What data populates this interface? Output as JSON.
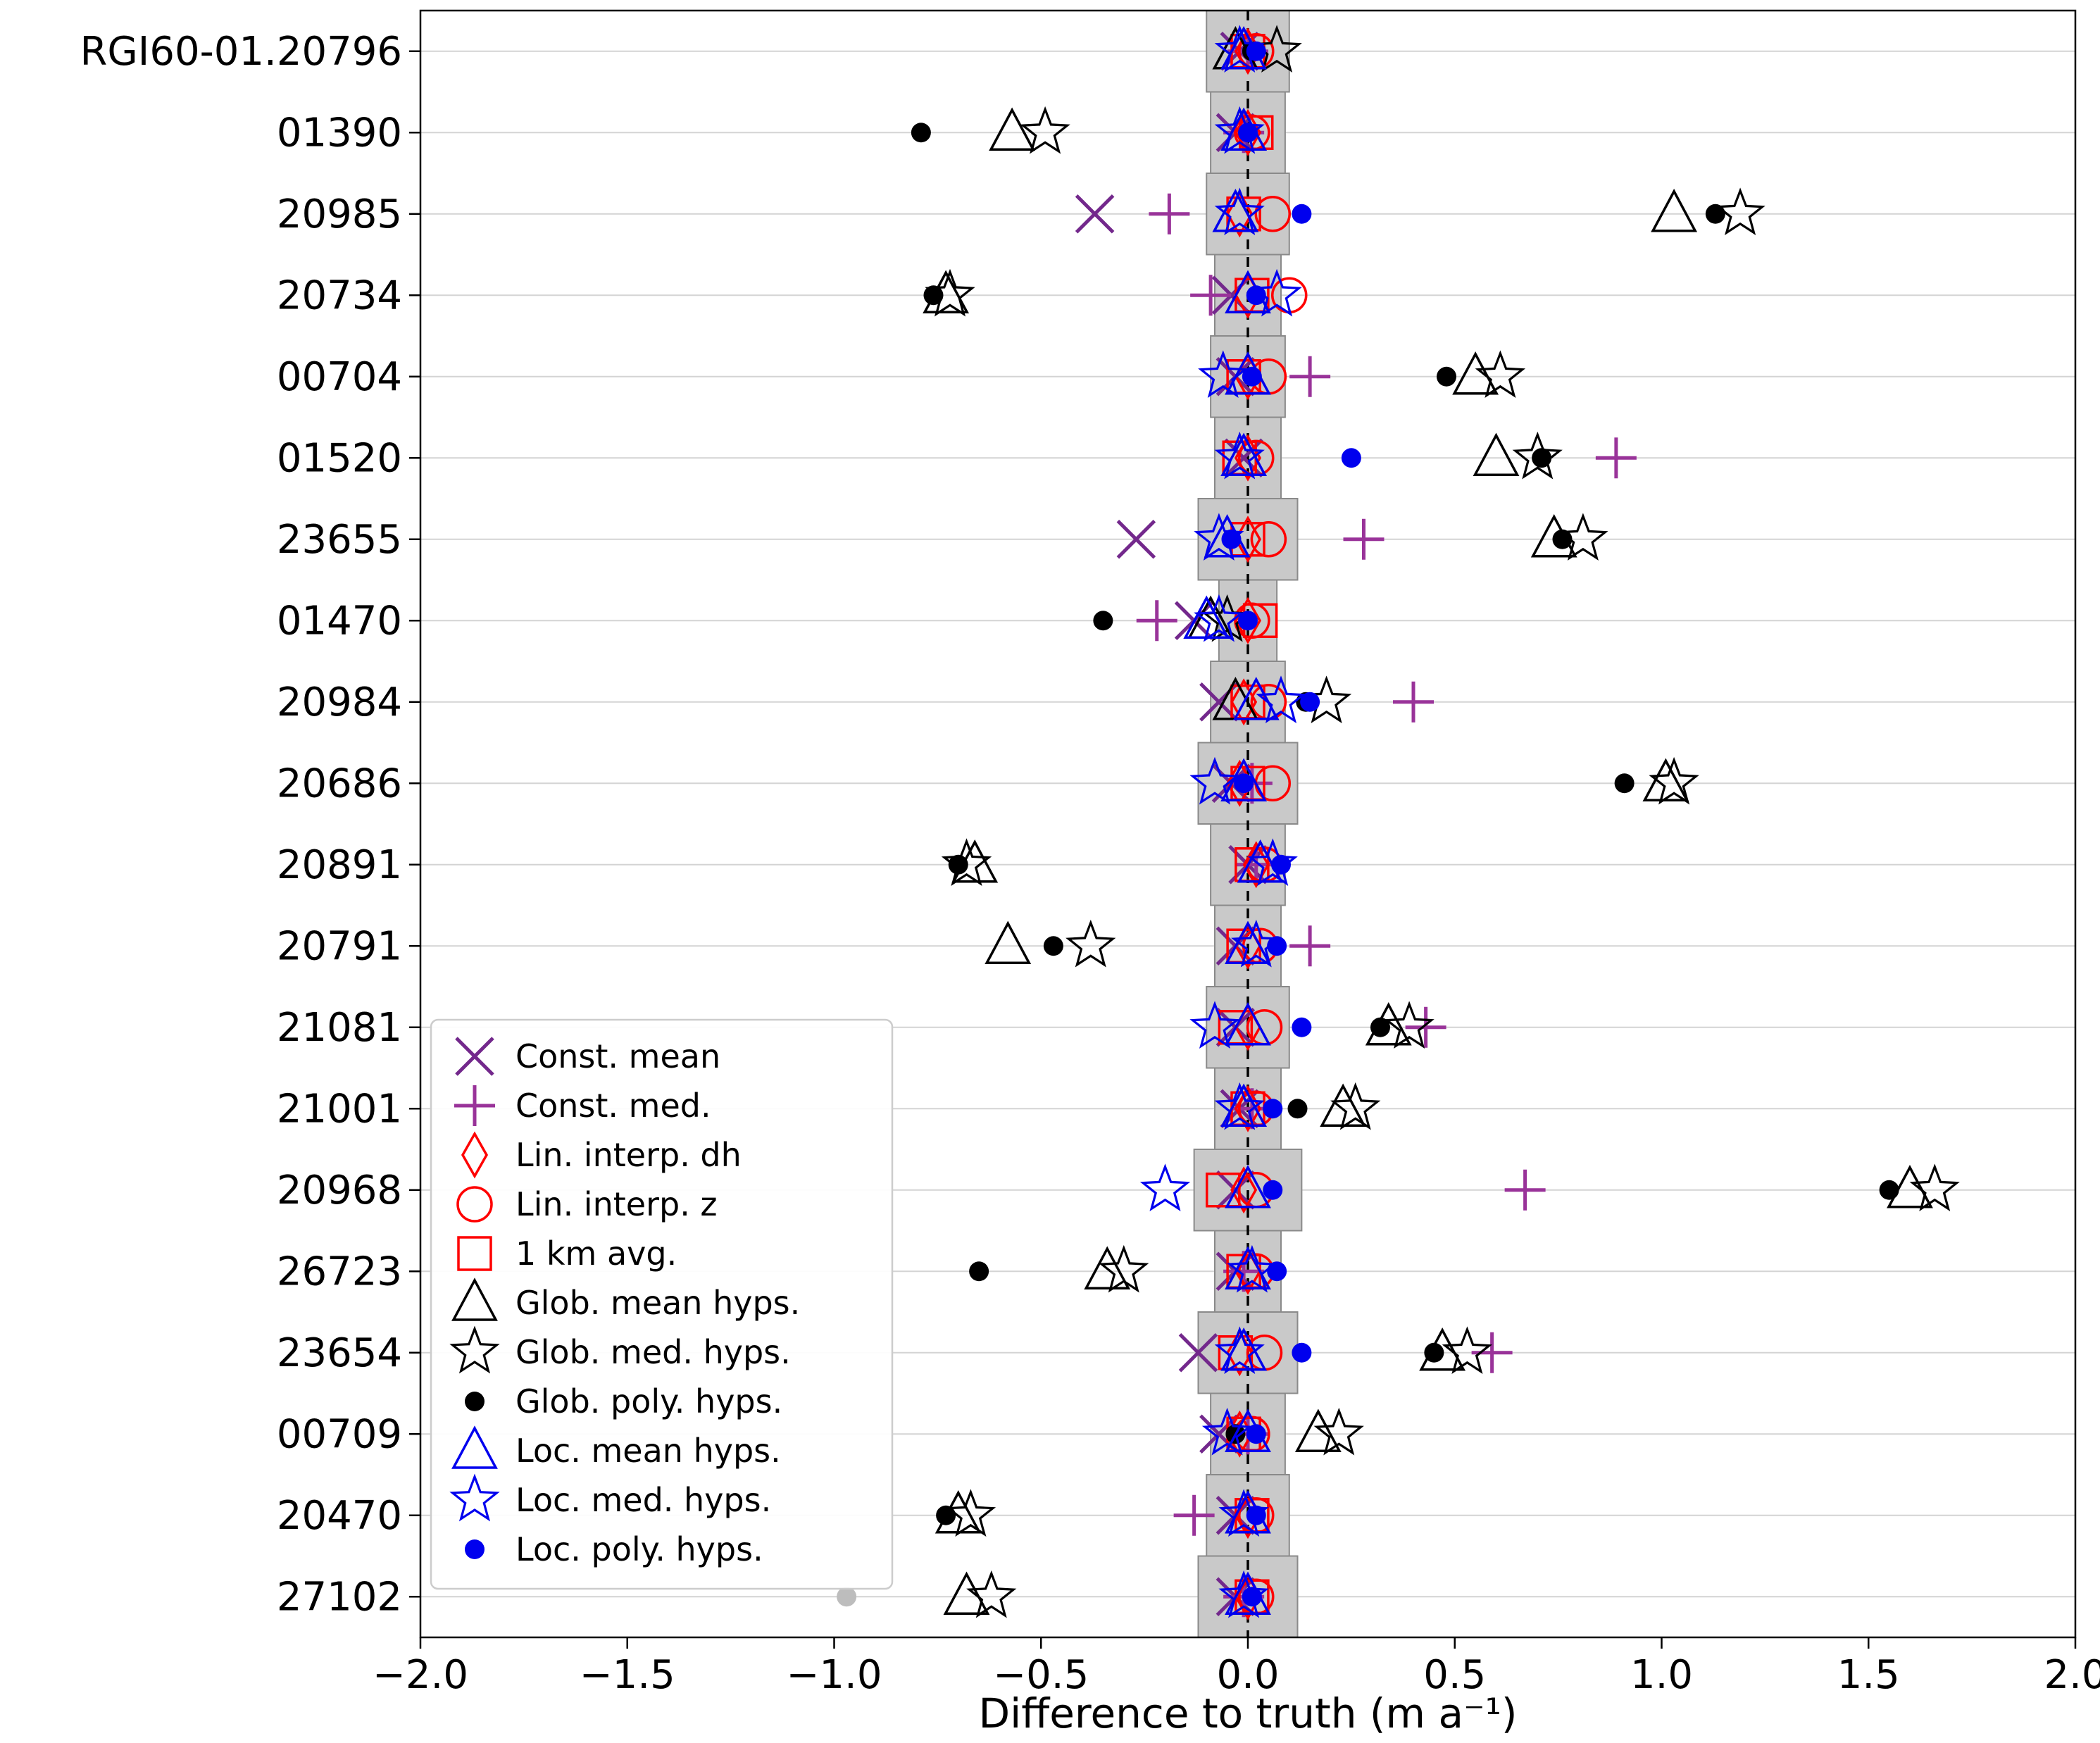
{
  "figure": {
    "background": "#ffffff"
  },
  "chart_data": {
    "type": "scatter",
    "title": "",
    "xlabel": "Difference to truth (m a⁻¹)",
    "ylabel": "",
    "xlim": [
      -2.0,
      2.0
    ],
    "grid": "horizontal",
    "grid_color": "#d4d4d4",
    "band_fill": "#c9c9c9",
    "band_edge": "#8a8a8a",
    "zero_line": 0,
    "xticks": {
      "values": [
        -2.0,
        -1.5,
        -1.0,
        -0.5,
        0.0,
        0.5,
        1.0,
        1.5,
        2.0
      ],
      "labels": [
        "−2.0",
        "−1.5",
        "−1.0",
        "−0.5",
        "0.0",
        "0.5",
        "1.0",
        "1.5",
        "2.0"
      ]
    },
    "categories": [
      "RGI60-01.20796",
      "01390",
      "20985",
      "20734",
      "00704",
      "01520",
      "23655",
      "01470",
      "20984",
      "20686",
      "20891",
      "20791",
      "21081",
      "21001",
      "20968",
      "26723",
      "23654",
      "00709",
      "20470",
      "27102"
    ],
    "uncertainty_band_halfwidth": [
      0.1,
      0.09,
      0.1,
      0.08,
      0.09,
      0.08,
      0.12,
      0.07,
      0.09,
      0.12,
      0.09,
      0.08,
      0.1,
      0.08,
      0.13,
      0.08,
      0.12,
      0.09,
      0.1,
      0.12
    ],
    "series": [
      {
        "name": "Const. mean",
        "marker": "x",
        "color": "#73288c",
        "values": [
          -0.02,
          -0.03,
          -0.37,
          -0.04,
          -0.03,
          -0.01,
          -0.27,
          -0.13,
          -0.07,
          -0.04,
          0.0,
          -0.03,
          -0.03,
          -0.02,
          -0.03,
          -0.03,
          -0.12,
          -0.07,
          -0.03,
          -0.03
        ]
      },
      {
        "name": "Const. med.",
        "marker": "plus",
        "color": "#993399",
        "values": [
          0.0,
          -0.01,
          -0.19,
          -0.09,
          0.15,
          0.89,
          0.28,
          -0.22,
          0.4,
          0.01,
          0.02,
          0.15,
          0.43,
          0.01,
          0.67,
          -0.01,
          0.59,
          0.0,
          -0.13,
          -0.01
        ]
      },
      {
        "name": "Lin. interp. dh",
        "marker": "diamond",
        "color": "#ff0000",
        "values": [
          0.0,
          0.0,
          -0.02,
          0.0,
          0.0,
          0.0,
          0.0,
          0.0,
          -0.01,
          -0.02,
          0.02,
          0.0,
          0.0,
          0.0,
          -0.01,
          0.0,
          -0.02,
          -0.02,
          0.0,
          0.0
        ]
      },
      {
        "name": "Lin. interp. z",
        "marker": "circle",
        "color": "#ff0000",
        "values": [
          0.02,
          0.01,
          0.06,
          0.1,
          0.05,
          0.02,
          0.05,
          0.01,
          0.05,
          0.06,
          0.04,
          0.03,
          0.04,
          0.02,
          0.02,
          0.02,
          0.04,
          0.01,
          0.02,
          0.02
        ]
      },
      {
        "name": "1 km avg.",
        "marker": "square",
        "color": "#ff0000",
        "values": [
          0.0,
          0.02,
          -0.01,
          0.01,
          -0.01,
          -0.02,
          0.0,
          0.03,
          0.0,
          0.0,
          0.01,
          -0.01,
          -0.03,
          0.0,
          -0.06,
          -0.01,
          -0.03,
          -0.01,
          0.01,
          0.01
        ]
      },
      {
        "name": "Glob. mean hyps.",
        "marker": "triangle",
        "color": "#000000",
        "values": [
          -0.03,
          -0.57,
          1.03,
          -0.73,
          0.55,
          0.6,
          0.74,
          -0.09,
          -0.03,
          1.01,
          -0.66,
          -0.58,
          0.34,
          0.23,
          1.6,
          -0.34,
          0.47,
          0.17,
          -0.7,
          -0.68
        ]
      },
      {
        "name": "Glob. med. hyps.",
        "marker": "star",
        "color": "#000000",
        "values": [
          0.07,
          -0.49,
          1.19,
          -0.72,
          0.61,
          0.7,
          0.81,
          -0.05,
          0.19,
          1.03,
          -0.68,
          -0.38,
          0.39,
          0.26,
          1.66,
          -0.3,
          0.53,
          0.22,
          -0.67,
          -0.62
        ]
      },
      {
        "name": "Glob. poly. hyps.",
        "marker": "dot",
        "color": "#000000",
        "values": [
          0.01,
          -0.79,
          1.13,
          -0.76,
          0.48,
          0.71,
          0.76,
          -0.35,
          0.14,
          0.91,
          -0.7,
          -0.47,
          0.32,
          0.12,
          1.55,
          -0.65,
          0.45,
          -0.03,
          -0.73,
          null
        ]
      },
      {
        "name": "Loc. mean hyps.",
        "marker": "triangle",
        "color": "#0000ee",
        "values": [
          -0.01,
          -0.01,
          -0.03,
          0.0,
          0.0,
          -0.01,
          -0.05,
          -0.1,
          0.02,
          -0.01,
          0.03,
          0.0,
          0.0,
          -0.01,
          0.0,
          0.0,
          -0.01,
          0.0,
          0.0,
          0.0
        ]
      },
      {
        "name": "Loc. med. hyps.",
        "marker": "star",
        "color": "#0000ee",
        "values": [
          -0.02,
          -0.02,
          -0.02,
          0.07,
          -0.06,
          -0.02,
          -0.07,
          -0.07,
          0.08,
          -0.08,
          0.06,
          0.02,
          -0.08,
          -0.02,
          -0.2,
          0.01,
          -0.02,
          -0.05,
          -0.01,
          -0.01
        ]
      },
      {
        "name": "Loc. poly. hyps.",
        "marker": "dot",
        "color": "#0000ee",
        "values": [
          0.02,
          0.0,
          0.13,
          0.02,
          0.01,
          0.25,
          -0.04,
          0.0,
          0.15,
          -0.01,
          0.08,
          0.07,
          0.13,
          0.06,
          0.06,
          0.07,
          0.13,
          0.02,
          0.02,
          0.01
        ]
      }
    ],
    "extra_points": [
      {
        "category": "27102",
        "x": -0.97,
        "marker": "dot",
        "color": "#bdbdbd"
      }
    ],
    "legend": {
      "position": "lower left"
    }
  }
}
